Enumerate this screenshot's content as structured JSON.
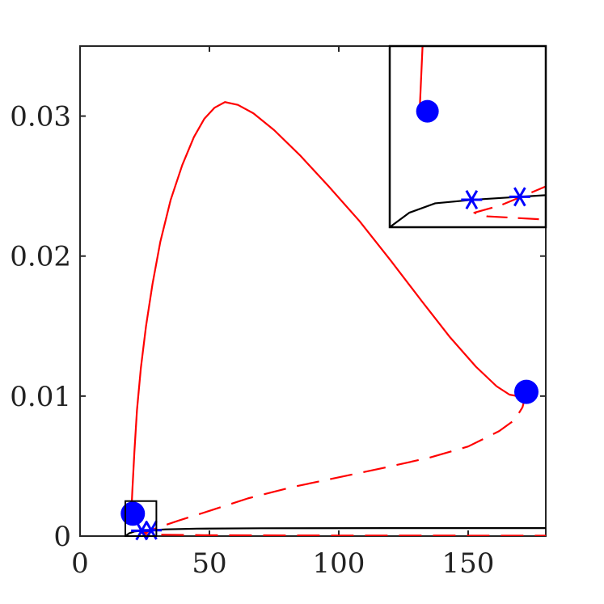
{
  "chart_data": {
    "type": "line",
    "title": "",
    "xlabel": "",
    "ylabel": "",
    "xlim": [
      0,
      180
    ],
    "ylim": [
      0,
      0.035
    ],
    "grid": false,
    "legend": "none",
    "x_ticks": [
      {
        "value": 0,
        "label": "0"
      },
      {
        "value": 50,
        "label": "50"
      },
      {
        "value": 100,
        "label": "100"
      },
      {
        "value": 150,
        "label": "150"
      }
    ],
    "y_ticks": [
      {
        "value": 0,
        "label": "0"
      },
      {
        "value": 0.01,
        "label": "0.01"
      },
      {
        "value": 0.02,
        "label": "0.02"
      },
      {
        "value": 0.03,
        "label": "0.03"
      }
    ],
    "series": [
      {
        "style": "solid",
        "color": "#ff0000",
        "points": [
          [
            19.8,
            0.0016
          ],
          [
            20.2,
            0.0032
          ],
          [
            21,
            0.006
          ],
          [
            22,
            0.009
          ],
          [
            23.5,
            0.012
          ],
          [
            25.5,
            0.015
          ],
          [
            28,
            0.018
          ],
          [
            31,
            0.021
          ],
          [
            35,
            0.024
          ],
          [
            39.5,
            0.0265
          ],
          [
            44,
            0.0285
          ],
          [
            48,
            0.0298
          ],
          [
            52,
            0.0306
          ],
          [
            56,
            0.031
          ],
          [
            61,
            0.0308
          ],
          [
            67,
            0.0302
          ],
          [
            75,
            0.029
          ],
          [
            85,
            0.0272
          ],
          [
            96,
            0.025
          ],
          [
            108,
            0.0225
          ],
          [
            120,
            0.0197
          ],
          [
            132,
            0.0168
          ],
          [
            143,
            0.0142
          ],
          [
            153,
            0.0121
          ],
          [
            161,
            0.0107
          ],
          [
            166,
            0.0101
          ],
          [
            169,
            0.01
          ],
          [
            171,
            0.0102
          ],
          [
            172.5,
            0.0103
          ]
        ]
      },
      {
        "style": "dashed",
        "color": "#ff0000",
        "points": [
          [
            172.5,
            0.0103
          ],
          [
            171,
            0.0092
          ],
          [
            168,
            0.0083
          ],
          [
            162,
            0.0075
          ],
          [
            150,
            0.0064
          ],
          [
            135,
            0.0056
          ],
          [
            118,
            0.0049
          ],
          [
            100,
            0.0042
          ],
          [
            82,
            0.0035
          ],
          [
            65,
            0.0027
          ],
          [
            50,
            0.0018
          ],
          [
            38,
            0.0011
          ],
          [
            30,
            0.0006
          ],
          [
            26,
            0.0003
          ],
          [
            24,
            0.0002
          ],
          [
            25,
            0.00015
          ],
          [
            30,
            0.0001
          ],
          [
            50,
            6e-05
          ],
          [
            100,
            4e-05
          ],
          [
            180,
            3e-05
          ]
        ]
      },
      {
        "style": "solid",
        "color": "#000000",
        "points": [
          [
            17.5,
            0
          ],
          [
            19,
            0.0002
          ],
          [
            21,
            0.00033
          ],
          [
            24,
            0.00038
          ],
          [
            27.5,
            0.00042
          ],
          [
            33,
            0.00048
          ],
          [
            45,
            0.00053
          ],
          [
            70,
            0.00056
          ],
          [
            120,
            0.00057
          ],
          [
            180,
            0.00057
          ]
        ]
      }
    ],
    "markers": [
      {
        "kind": "circle",
        "color": "#0000ff",
        "x": 172.5,
        "y": 0.0103
      },
      {
        "kind": "circle",
        "color": "#0000ff",
        "x": 20.4,
        "y": 0.0016
      },
      {
        "kind": "asterisk",
        "color": "#0000ff",
        "x": 23.8,
        "y": 0.00038
      },
      {
        "kind": "asterisk",
        "color": "#0000ff",
        "x": 27.5,
        "y": 0.00042
      }
    ],
    "inset": {
      "xlim": [
        17.5,
        29.5
      ],
      "ylim": [
        0,
        0.0025
      ],
      "x_ticks": [],
      "y_ticks": []
    }
  }
}
